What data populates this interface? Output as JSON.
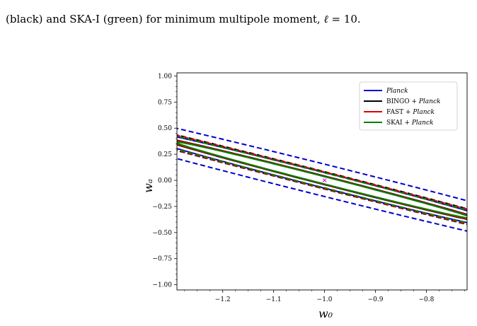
{
  "caption": {
    "prefix": "(black) and SKA-I (green) for minimum multipole moment, ",
    "ell_symbol": "ℓ",
    "suffix": " = 10."
  },
  "chart_data": {
    "type": "contour-ellipses",
    "xlabel": "w₀",
    "ylabel": "wₐ",
    "xlim": [
      -1.29,
      -0.72
    ],
    "ylim": [
      -1.05,
      1.03
    ],
    "xticks": [
      -1.2,
      -1.1,
      -1.0,
      -0.9,
      -0.8
    ],
    "xtick_labels": [
      "−1.2",
      "−1.1",
      "−1.0",
      "−0.9",
      "−0.8"
    ],
    "yticks": [
      1.0,
      0.75,
      0.5,
      0.25,
      0.0,
      -0.25,
      -0.5,
      -0.75,
      -1.0
    ],
    "ytick_labels": [
      "1.00",
      "0.75",
      "0.50",
      "0.25",
      "0.00",
      "−0.25",
      "−0.50",
      "−0.75",
      "−1.00"
    ],
    "fiducial": {
      "x": -1.0,
      "y": 0.0,
      "marker": "x",
      "color": "#ff00ff"
    },
    "legend_position": "top-right",
    "series": [
      {
        "name": "Planck",
        "name_italic": true,
        "prefix": "",
        "color": "#0000cc",
        "contours": [
          {
            "level": "1sigma",
            "style": "solid",
            "semi_major": 0.69,
            "semi_minor": 0.047,
            "angle_deg": -51.5
          },
          {
            "level": "2sigma",
            "style": "dashed",
            "semi_major": 1.285,
            "semi_minor": 0.098,
            "angle_deg": -51.0
          }
        ]
      },
      {
        "name": "Planck",
        "name_italic": true,
        "prefix": "BINGO + ",
        "color": "#000000",
        "contours": [
          {
            "level": "1sigma",
            "style": "solid",
            "semi_major": 0.545,
            "semi_minor": 0.026,
            "angle_deg": -51.5
          },
          {
            "level": "2sigma",
            "style": "dashed",
            "semi_major": 1.07,
            "semi_minor": 0.052,
            "angle_deg": -51.3
          }
        ]
      },
      {
        "name": "Planck",
        "name_italic": true,
        "prefix": "FAST + ",
        "color": "#dd0000",
        "contours": [
          {
            "level": "1sigma",
            "style": "solid",
            "semi_major": 0.52,
            "semi_minor": 0.024,
            "angle_deg": -51.5
          },
          {
            "level": "2sigma",
            "style": "dashed",
            "semi_major": 1.03,
            "semi_minor": 0.05,
            "angle_deg": -51.3
          }
        ]
      },
      {
        "name": "Planck",
        "name_italic": true,
        "prefix": "SKAI + ",
        "color": "#008000",
        "contours": [
          {
            "level": "1sigma",
            "style": "solid",
            "semi_major": 0.47,
            "semi_minor": 0.022,
            "angle_deg": -51.5
          },
          {
            "level": "2sigma",
            "style": "dashed",
            "semi_major": 0.88,
            "semi_minor": 0.045,
            "angle_deg": -51.3
          }
        ]
      }
    ]
  }
}
